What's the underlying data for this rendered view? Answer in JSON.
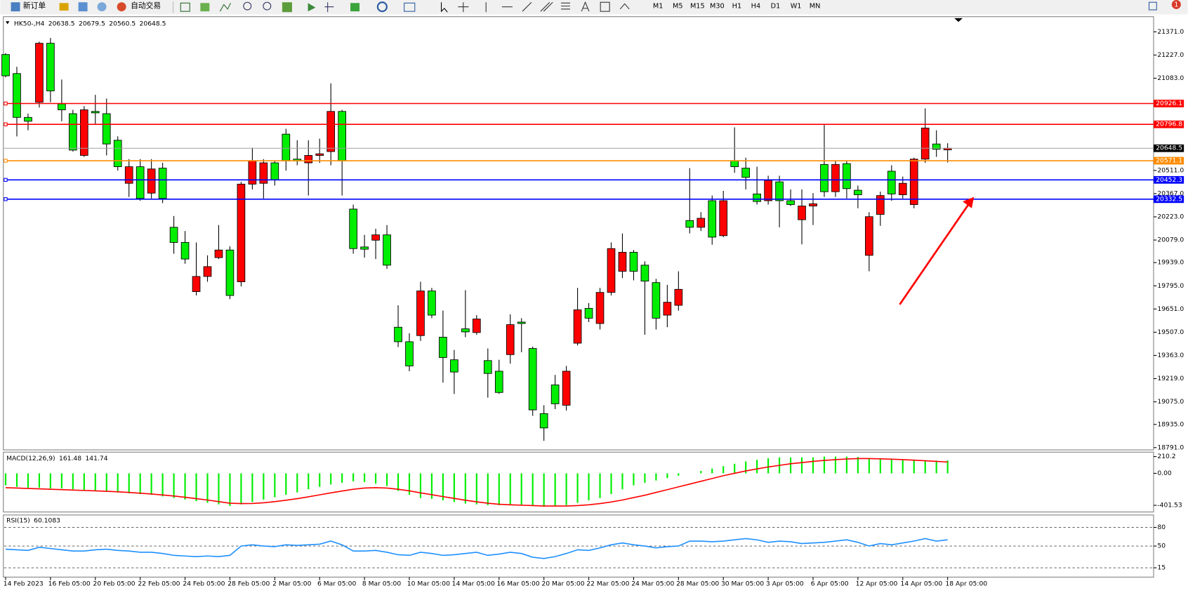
{
  "toolbar": {
    "new_order": "新订单",
    "auto_trading": "自动交易",
    "timeframes": [
      "M1",
      "M5",
      "M15",
      "M30",
      "H1",
      "H4",
      "D1",
      "W1",
      "MN"
    ],
    "notifications": 1
  },
  "chart_data": [
    {
      "type": "candlestick",
      "symbol": "HK50-,H4",
      "open": [
        21230,
        21112,
        20840,
        20934,
        21300,
        20924,
        20863,
        20604,
        20877,
        20863,
        20698,
        20431,
        20534,
        20370,
        20525,
        20158,
        20064,
        19759,
        19853,
        19970,
        20017,
        19820,
        20426,
        20431,
        20558,
        20736,
        20581,
        20558,
        20604,
        20628,
        20877,
        20271,
        20036,
        20078,
        20111,
        19538,
        19448,
        19486,
        19763,
        19476,
        19336,
        19528,
        19505,
        19331,
        19265,
        19368,
        19570,
        19406,
        19002,
        19180,
        19054,
        19439,
        19655,
        19561,
        19754,
        19885,
        20003,
        19923,
        19815,
        19613,
        19674,
        20200,
        20158,
        20323,
        20106,
        20572,
        20525,
        20365,
        20323,
        20440,
        20323,
        20205,
        20290,
        20548,
        20379,
        20553,
        20388,
        19984,
        20238,
        20506,
        20360,
        20299,
        20581,
        20675,
        20638.5
      ],
      "high": [
        21239,
        21154,
        20863,
        21310,
        21333,
        21075,
        20887,
        20910,
        20980,
        20957,
        20722,
        20581,
        20581,
        20581,
        20558,
        20228,
        20135,
        20064,
        19984,
        20172,
        20040,
        20440,
        20652,
        20581,
        20572,
        20769,
        20698,
        20698,
        20708,
        21051,
        20887,
        20299,
        20111,
        20149,
        20172,
        19674,
        19500,
        19820,
        19782,
        19641,
        19397,
        19768,
        19613,
        19406,
        19336,
        19618,
        19594,
        19418,
        19054,
        19242,
        19298,
        19782,
        19688,
        19782,
        20064,
        20120,
        20017,
        19947,
        19838,
        19801,
        19885,
        20525,
        20252,
        20355,
        20384,
        20778,
        20590,
        20534,
        20478,
        20478,
        20393,
        20393,
        20370,
        20793,
        20572,
        20572,
        20417,
        20252,
        20379,
        20543,
        20473,
        20590,
        20896,
        20760,
        20679.5
      ],
      "low": [
        21089,
        20722,
        20760,
        20901,
        20934,
        20816,
        20628,
        20595,
        20793,
        20604,
        20510,
        20346,
        20323,
        20337,
        20308,
        19994,
        19932,
        19735,
        19820,
        19961,
        19712,
        19791,
        20393,
        20337,
        20417,
        20510,
        20543,
        20355,
        20558,
        20543,
        20355,
        19994,
        19970,
        19961,
        19900,
        19415,
        19265,
        19453,
        19594,
        19194,
        19124,
        19476,
        19491,
        19101,
        19124,
        19312,
        19383,
        18988,
        18833,
        19030,
        19021,
        19425,
        19570,
        19524,
        19735,
        19843,
        19829,
        19491,
        19524,
        19538,
        19641,
        20120,
        20135,
        20050,
        20097,
        20496,
        20393,
        20299,
        20299,
        20158,
        20290,
        20052,
        20172,
        20346,
        20346,
        20337,
        20276,
        19885,
        20167,
        20323,
        20337,
        20276,
        20558,
        20595,
        20560.5
      ],
      "close": [
        21098,
        20840,
        20816,
        21300,
        21004,
        20887,
        20637,
        20887,
        20868,
        20675,
        20534,
        20534,
        20337,
        20520,
        20337,
        20064,
        19961,
        19853,
        19914,
        20017,
        19735,
        20426,
        20572,
        20558,
        20454,
        20572,
        20572,
        20604,
        20614,
        20877,
        20572,
        20026,
        20022,
        20111,
        19923,
        19448,
        19298,
        19763,
        19613,
        19350,
        19260,
        19509,
        19589,
        19251,
        19133,
        19554,
        19561,
        19025,
        18913,
        19063,
        19265,
        19646,
        19594,
        19754,
        20026,
        20003,
        19885,
        19824,
        19594,
        19693,
        19773,
        20158,
        20214,
        20097,
        20323,
        20534,
        20468,
        20318,
        20449,
        20323,
        20299,
        20290,
        20304,
        20379,
        20548,
        20398,
        20360,
        20224,
        20355,
        20365,
        20431,
        20581,
        20774,
        20642,
        20648.5
      ],
      "up_color": "#ff0000",
      "down_color": "#00ee00",
      "ylim": [
        18777,
        21465
      ],
      "yticks": [
        {
          "value": 21371,
          "label": "21371.0"
        },
        {
          "value": 21227,
          "label": "21227.0"
        },
        {
          "value": 21083,
          "label": "21083.0"
        },
        {
          "value": 20511,
          "label": "20511.0"
        },
        {
          "value": 20367,
          "label": "20367.0"
        },
        {
          "value": 20223,
          "label": "20223.0"
        },
        {
          "value": 20079,
          "label": "20079.0"
        },
        {
          "value": 19939,
          "label": "19939.0"
        },
        {
          "value": 19795,
          "label": "19795.0"
        },
        {
          "value": 19651,
          "label": "19651.0"
        },
        {
          "value": 19507,
          "label": "19507.0"
        },
        {
          "value": 19363,
          "label": "19363.0"
        },
        {
          "value": 19219,
          "label": "19219.0"
        },
        {
          "value": 19075,
          "label": "19075.0"
        },
        {
          "value": 18935,
          "label": "18935.0"
        },
        {
          "value": 18791,
          "label": "18791.0"
        }
      ],
      "levels": [
        {
          "value": 20926.1,
          "color": "#ff0000"
        },
        {
          "value": 20796.8,
          "color": "#ff0000"
        },
        {
          "value": 20571.1,
          "color": "#ff8c00"
        },
        {
          "value": 20452.3,
          "color": "#0000ff"
        },
        {
          "value": 20332.5,
          "color": "#0000ff"
        }
      ],
      "x_labels": [
        "14 Feb 2023",
        "16 Feb 05:00",
        "20 Feb 05:00",
        "22 Feb 05:00",
        "24 Feb 05:00",
        "28 Feb 05:00",
        "2 Mar 05:00",
        "6 Mar 05:00",
        "8 Mar 05:00",
        "10 Mar 05:00",
        "14 Mar 05:00",
        "16 Mar 05:00",
        "20 Mar 05:00",
        "22 Mar 05:00",
        "24 Mar 05:00",
        "28 Mar 05:00",
        "30 Mar 05:00",
        "3 Apr 05:00",
        "6 Apr 05:00",
        "12 Apr 05:00",
        "14 Apr 05:00",
        "18 Apr 05:00"
      ]
    },
    {
      "type": "macd",
      "title": "MACD(12,26,9)",
      "color": "#00ee00",
      "signal_color": "#ff0000",
      "histogram": [
        -150,
        -170,
        -180,
        -180,
        -190,
        -190,
        -200,
        -210,
        -220,
        -230,
        -240,
        -250,
        -260,
        -270,
        -290,
        -310,
        -330,
        -350,
        -370,
        -390,
        -410,
        -390,
        -360,
        -330,
        -300,
        -270,
        -240,
        -200,
        -170,
        -140,
        -120,
        -100,
        -110,
        -130,
        -160,
        -220,
        -270,
        -310,
        -320,
        -340,
        -360,
        -380,
        -390,
        -400,
        -400,
        -390,
        -400,
        -410,
        -420,
        -410,
        -400,
        -370,
        -340,
        -310,
        -260,
        -200,
        -150,
        -120,
        -90,
        -60,
        -30,
        0,
        30,
        60,
        90,
        120,
        150,
        170,
        190,
        200,
        200,
        200,
        200,
        210,
        210,
        210,
        205,
        190,
        185,
        180,
        175,
        170,
        165,
        160,
        161.48
      ],
      "signal": [
        -180,
        -185,
        -190,
        -195,
        -200,
        -205,
        -210,
        -215,
        -220,
        -225,
        -232,
        -240,
        -250,
        -260,
        -272,
        -285,
        -300,
        -318,
        -335,
        -355,
        -375,
        -380,
        -378,
        -370,
        -355,
        -338,
        -318,
        -295,
        -270,
        -245,
        -222,
        -200,
        -185,
        -180,
        -185,
        -200,
        -220,
        -245,
        -268,
        -292,
        -315,
        -338,
        -358,
        -375,
        -388,
        -395,
        -400,
        -405,
        -410,
        -410,
        -410,
        -405,
        -395,
        -380,
        -360,
        -335,
        -305,
        -275,
        -240,
        -205,
        -170,
        -135,
        -100,
        -65,
        -30,
        0,
        30,
        55,
        80,
        100,
        120,
        135,
        150,
        162,
        172,
        180,
        185,
        185,
        182,
        178,
        172,
        165,
        158,
        150,
        141.74
      ],
      "ylim": [
        -485,
        266
      ],
      "yticks": [
        210.2,
        {
          "value": 0,
          "label": "0.00"
        },
        -401.53
      ]
    },
    {
      "type": "line",
      "title": "RSI(15)",
      "color": "#1e90ff",
      "values": [
        45,
        44,
        43,
        48,
        46,
        44,
        42,
        42,
        44,
        45,
        43,
        42,
        40,
        40,
        38,
        35,
        34,
        33,
        34,
        33,
        35,
        50,
        52,
        50,
        49,
        52,
        51,
        52,
        53,
        58,
        52,
        42,
        42,
        43,
        40,
        36,
        35,
        40,
        38,
        35,
        36,
        38,
        40,
        35,
        37,
        40,
        38,
        32,
        30,
        33,
        38,
        44,
        43,
        47,
        52,
        55,
        52,
        50,
        47,
        49,
        50,
        58,
        58,
        57,
        58,
        60,
        62,
        60,
        56,
        58,
        57,
        54,
        55,
        56,
        58,
        60,
        56,
        50,
        54,
        52,
        55,
        58,
        62,
        58,
        60.1083
      ],
      "ylim": [
        0,
        100
      ],
      "yticks": [
        80,
        50,
        15
      ]
    }
  ]
}
